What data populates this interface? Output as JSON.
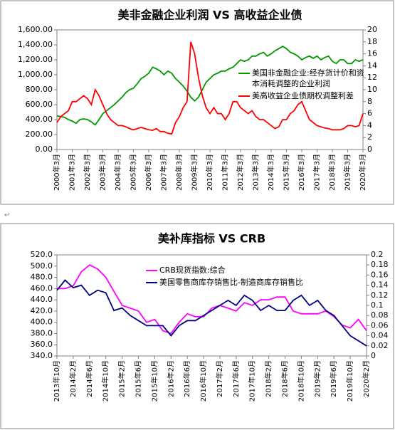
{
  "chart_data": [
    {
      "type": "line",
      "title": "美非金融企业利润 VS 高收益企业债",
      "categories": [
        "2000年3月",
        null,
        null,
        null,
        "2001年3月",
        null,
        null,
        null,
        "2002年3月",
        null,
        null,
        null,
        "2003年3月",
        null,
        null,
        null,
        "2004年3月",
        null,
        null,
        null,
        "2005年3月",
        null,
        null,
        null,
        "2006年3月",
        null,
        null,
        null,
        "2007年3月",
        null,
        null,
        null,
        "2008年3月",
        null,
        null,
        null,
        "2009年3月",
        null,
        null,
        null,
        "2010年3月",
        null,
        null,
        null,
        "2011年3月",
        null,
        null,
        null,
        "2012年3月",
        null,
        null,
        null,
        "2013年3月",
        null,
        null,
        null,
        "2014年3月",
        null,
        null,
        null,
        "2015年3月",
        null,
        null,
        null,
        "2016年3月",
        null,
        null,
        null,
        "2017年3月",
        null,
        null,
        null,
        "2018年3月",
        null,
        null,
        null,
        "2019年3月",
        null,
        null,
        null,
        "2020年3月"
      ],
      "series": [
        {
          "name": "美国非金融企业:经存货计价和资本消耗调整的企业利润",
          "color": "#009900",
          "values": [
            450,
            440,
            430,
            400,
            380,
            350,
            400,
            410,
            400,
            370,
            330,
            400,
            480,
            520,
            560,
            600,
            650,
            700,
            760,
            800,
            820,
            880,
            950,
            980,
            1020,
            1100,
            1080,
            1050,
            1000,
            1050,
            1020,
            950,
            900,
            850,
            780,
            700,
            650,
            700,
            800,
            900,
            950,
            1000,
            1020,
            1050,
            1050,
            1080,
            1100,
            1150,
            1200,
            1180,
            1200,
            1250,
            1250,
            1280,
            1300,
            1250,
            1280,
            1320,
            1350,
            1380,
            1350,
            1300,
            1280,
            1250,
            1200,
            1230,
            1250,
            1220,
            1250,
            1200,
            1230,
            1250,
            1180,
            1150,
            1200,
            1200,
            1150,
            1150,
            1200,
            1180,
            1200
          ]
        },
        {
          "name": "美高收益企业债期权调整利差",
          "color": "#ff0000",
          "axis": "y2",
          "values": [
            4.5,
            5.5,
            6,
            6.5,
            8,
            8,
            8.5,
            9,
            8.5,
            7.5,
            10,
            9,
            7.5,
            6,
            5,
            4.5,
            4,
            4,
            3.8,
            3.5,
            3.3,
            3.5,
            3.7,
            3.5,
            3.3,
            3.2,
            3.5,
            3,
            3,
            2.7,
            2.6,
            4.5,
            5.5,
            7,
            8,
            18,
            16,
            12,
            9,
            7,
            6,
            7,
            6,
            6,
            5,
            6,
            8,
            8,
            7,
            6.5,
            6,
            6.5,
            5.5,
            5,
            5,
            4.5,
            4,
            3.5,
            3.8,
            5,
            5,
            6,
            6.5,
            7.5,
            8,
            6.5,
            5,
            4.5,
            4,
            3.8,
            3.6,
            3.5,
            3.3,
            3.3,
            3.3,
            3.5,
            4,
            4,
            3.8,
            4,
            6
          ]
        }
      ],
      "ylim": [
        0,
        1600
      ],
      "yticks": [
        {
          "value": 0,
          "label": "0.00"
        },
        {
          "value": 200,
          "label": "200.00"
        },
        {
          "value": 400,
          "label": "400.00"
        },
        {
          "value": 600,
          "label": "600.00"
        },
        {
          "value": 800,
          "label": "800.00"
        },
        {
          "value": 1000,
          "label": "1,000.00"
        },
        {
          "value": 1200,
          "label": "1,200.00"
        },
        {
          "value": 1400,
          "label": "1,400.00"
        },
        {
          "value": 1600,
          "label": "1,600.00"
        }
      ],
      "y2lim": [
        0,
        20
      ],
      "y2ticks": [
        0,
        2,
        4,
        6,
        8,
        10,
        12,
        14,
        16,
        18,
        20
      ],
      "legend": "right"
    },
    {
      "type": "line",
      "title": "美补库指标 VS CRB",
      "categories": [
        "2013年10月",
        null,
        "2014年2月",
        null,
        "2014年6月",
        null,
        "2014年10月",
        null,
        "2015年2月",
        null,
        "2015年6月",
        null,
        "2015年10月",
        null,
        "2016年2月",
        null,
        "2016年6月",
        null,
        "2016年10月",
        null,
        "2017年2月",
        null,
        "2017年6月",
        null,
        "2017年10月",
        null,
        "2018年2月",
        null,
        "2018年6月",
        null,
        "2018年10月",
        null,
        "2019年2月",
        null,
        "2019年6月",
        null,
        "2019年10月",
        null,
        "2020年2月"
      ],
      "series": [
        {
          "name": "CRB现货指数:综合",
          "color": "#ff00ff",
          "values": [
            460,
            460,
            465,
            490,
            502,
            495,
            480,
            455,
            430,
            425,
            420,
            400,
            405,
            385,
            380,
            400,
            415,
            410,
            410,
            425,
            430,
            425,
            420,
            435,
            430,
            440,
            440,
            445,
            445,
            420,
            415,
            415,
            415,
            420,
            410,
            395,
            390,
            405,
            385
          ]
        },
        {
          "name": "美国零售商库存销售比-制造商库存销售比",
          "color": "#000080",
          "axis": "y2",
          "values": [
            0.13,
            0.15,
            0.135,
            0.14,
            0.12,
            0.13,
            0.125,
            0.09,
            0.095,
            0.08,
            0.07,
            0.06,
            0.06,
            0.06,
            0.04,
            0.06,
            0.07,
            0.07,
            0.08,
            0.09,
            0.1,
            0.11,
            0.1,
            0.12,
            0.11,
            0.09,
            0.1,
            0.09,
            0.09,
            0.11,
            0.12,
            0.1,
            0.11,
            0.09,
            0.08,
            0.06,
            0.04,
            0.03,
            0.02
          ]
        }
      ],
      "ylim": [
        340,
        520
      ],
      "yticks": [
        {
          "value": 340,
          "label": "340.0"
        },
        {
          "value": 360,
          "label": "360.0"
        },
        {
          "value": 380,
          "label": "380.0"
        },
        {
          "value": 400,
          "label": "400.0"
        },
        {
          "value": 420,
          "label": "420.0"
        },
        {
          "value": 440,
          "label": "440.0"
        },
        {
          "value": 460,
          "label": "460.0"
        },
        {
          "value": 480,
          "label": "480.0"
        },
        {
          "value": 500,
          "label": "500.0"
        },
        {
          "value": 520,
          "label": "520.0"
        }
      ],
      "y2lim": [
        0,
        0.2
      ],
      "y2ticks": [
        0,
        0.02,
        0.04,
        0.06,
        0.08,
        0.1,
        0.12,
        0.14,
        0.16,
        0.18,
        0.2
      ],
      "legend": "top-left"
    }
  ]
}
